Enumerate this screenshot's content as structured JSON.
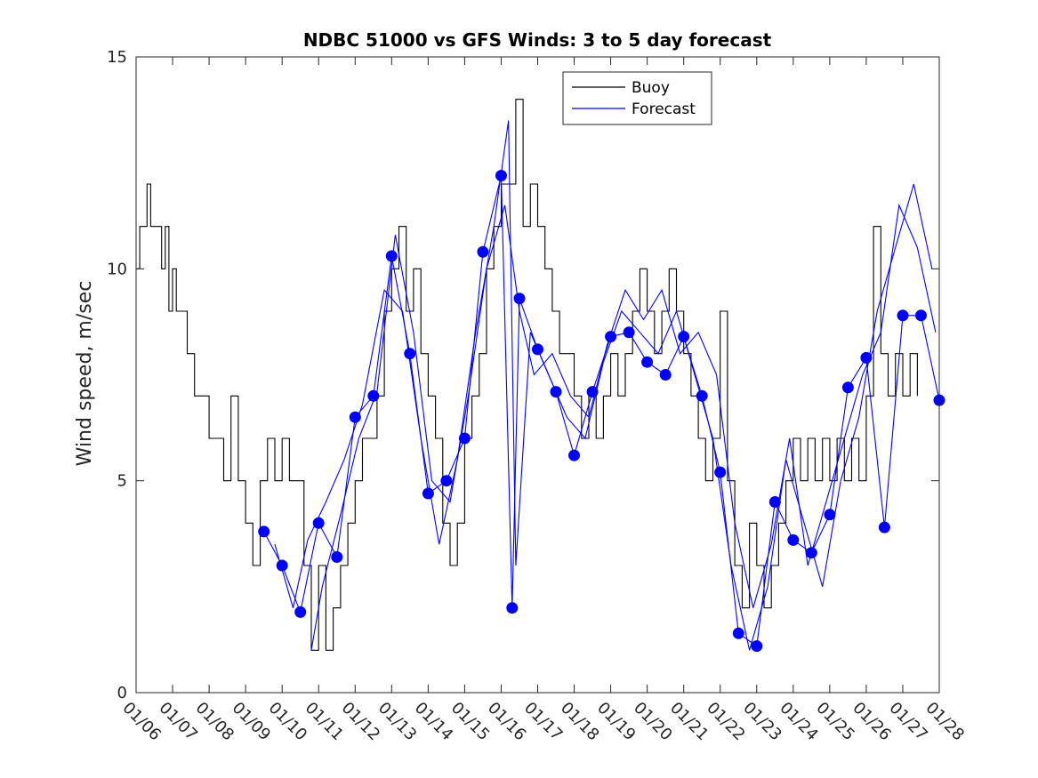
{
  "chart_data": {
    "type": "line",
    "title": "NDBC 51000 vs GFS Winds: 3 to 5 day forecast",
    "xlabel": "",
    "ylabel": "Wind speed, m/sec",
    "x_tick_labels": [
      "01/06",
      "01/07",
      "01/08",
      "01/09",
      "01/10",
      "01/11",
      "01/12",
      "01/13",
      "01/14",
      "01/15",
      "01/16",
      "01/17",
      "01/18",
      "01/19",
      "01/20",
      "01/21",
      "01/22",
      "01/23",
      "01/24",
      "01/25",
      "01/26",
      "01/27",
      "01/28"
    ],
    "y_ticks": [
      0,
      5,
      10,
      15
    ],
    "xlim": [
      "01/06",
      "01/28"
    ],
    "ylim": [
      0,
      15
    ],
    "grid": false,
    "legend_position": "top-center",
    "series": [
      {
        "name": "Buoy",
        "color": "#000000",
        "style": "step",
        "points": [
          [
            0.0,
            10
          ],
          [
            0.1,
            11
          ],
          [
            0.3,
            12
          ],
          [
            0.4,
            11
          ],
          [
            0.6,
            11
          ],
          [
            0.7,
            10
          ],
          [
            0.8,
            11
          ],
          [
            0.9,
            9
          ],
          [
            1.0,
            10
          ],
          [
            1.1,
            9
          ],
          [
            1.2,
            9
          ],
          [
            1.4,
            8
          ],
          [
            1.6,
            7
          ],
          [
            1.8,
            7
          ],
          [
            2.0,
            6
          ],
          [
            2.2,
            6
          ],
          [
            2.4,
            5
          ],
          [
            2.6,
            7
          ],
          [
            2.8,
            5
          ],
          [
            3.0,
            4
          ],
          [
            3.2,
            3
          ],
          [
            3.4,
            5
          ],
          [
            3.6,
            6
          ],
          [
            3.8,
            5
          ],
          [
            4.0,
            6
          ],
          [
            4.2,
            5
          ],
          [
            4.4,
            5
          ],
          [
            4.6,
            3
          ],
          [
            4.8,
            1
          ],
          [
            5.0,
            3
          ],
          [
            5.2,
            1
          ],
          [
            5.4,
            2
          ],
          [
            5.6,
            3
          ],
          [
            5.8,
            4
          ],
          [
            6.0,
            5
          ],
          [
            6.2,
            6
          ],
          [
            6.4,
            6
          ],
          [
            6.6,
            7
          ],
          [
            6.8,
            9
          ],
          [
            7.0,
            10
          ],
          [
            7.2,
            11
          ],
          [
            7.4,
            9
          ],
          [
            7.6,
            10
          ],
          [
            7.8,
            8
          ],
          [
            8.0,
            7
          ],
          [
            8.2,
            6
          ],
          [
            8.4,
            4
          ],
          [
            8.6,
            3
          ],
          [
            8.8,
            4
          ],
          [
            9.0,
            6
          ],
          [
            9.2,
            7
          ],
          [
            9.4,
            8
          ],
          [
            9.6,
            10
          ],
          [
            9.8,
            11
          ],
          [
            10.0,
            12
          ],
          [
            10.2,
            12
          ],
          [
            10.4,
            14
          ],
          [
            10.6,
            11
          ],
          [
            10.8,
            12
          ],
          [
            11.0,
            11
          ],
          [
            11.2,
            10
          ],
          [
            11.4,
            9
          ],
          [
            11.6,
            8
          ],
          [
            11.8,
            8
          ],
          [
            12.0,
            7
          ],
          [
            12.2,
            6
          ],
          [
            12.4,
            7
          ],
          [
            12.6,
            6
          ],
          [
            12.8,
            7
          ],
          [
            13.0,
            8
          ],
          [
            13.2,
            7
          ],
          [
            13.4,
            8
          ],
          [
            13.6,
            9
          ],
          [
            13.8,
            10
          ],
          [
            14.0,
            9
          ],
          [
            14.2,
            8
          ],
          [
            14.4,
            9
          ],
          [
            14.6,
            10
          ],
          [
            14.8,
            9
          ],
          [
            15.0,
            8
          ],
          [
            15.2,
            7
          ],
          [
            15.4,
            6
          ],
          [
            15.6,
            5
          ],
          [
            15.8,
            6
          ],
          [
            16.0,
            9
          ],
          [
            16.2,
            5
          ],
          [
            16.4,
            3
          ],
          [
            16.6,
            2
          ],
          [
            16.8,
            4
          ],
          [
            17.0,
            3
          ],
          [
            17.2,
            2
          ],
          [
            17.4,
            3
          ],
          [
            17.6,
            4
          ],
          [
            17.8,
            5
          ],
          [
            18.0,
            6
          ],
          [
            18.2,
            5
          ],
          [
            18.4,
            6
          ],
          [
            18.6,
            5
          ],
          [
            18.8,
            6
          ],
          [
            19.0,
            5
          ],
          [
            19.2,
            6
          ],
          [
            19.4,
            5
          ],
          [
            19.6,
            6
          ],
          [
            19.8,
            5
          ],
          [
            20.0,
            7
          ],
          [
            20.2,
            11
          ],
          [
            20.4,
            8
          ],
          [
            20.6,
            7
          ],
          [
            20.8,
            8
          ],
          [
            21.0,
            7
          ],
          [
            21.2,
            8
          ],
          [
            21.4,
            7
          ]
        ]
      },
      {
        "name": "Forecast",
        "color": "#0000ff",
        "style": "line",
        "points": [
          [
            3.5,
            3.8
          ],
          [
            4.0,
            3.0
          ],
          [
            4.5,
            1.9
          ],
          [
            5.0,
            4.0
          ],
          [
            5.5,
            3.2
          ],
          [
            6.0,
            6.5
          ],
          [
            6.5,
            7.0
          ],
          [
            7.0,
            10.3
          ],
          [
            7.5,
            8.0
          ],
          [
            8.0,
            4.7
          ],
          [
            8.5,
            5.0
          ],
          [
            9.0,
            6.0
          ],
          [
            9.5,
            10.4
          ],
          [
            10.0,
            12.2
          ],
          [
            10.3,
            2.0
          ],
          [
            10.5,
            9.3
          ],
          [
            11.0,
            8.1
          ],
          [
            11.5,
            7.1
          ],
          [
            12.0,
            5.6
          ],
          [
            12.5,
            7.1
          ],
          [
            13.0,
            8.4
          ],
          [
            13.5,
            8.5
          ],
          [
            14.0,
            7.8
          ],
          [
            14.5,
            7.5
          ],
          [
            15.0,
            8.4
          ],
          [
            15.5,
            7.0
          ],
          [
            16.0,
            5.2
          ],
          [
            16.5,
            1.4
          ],
          [
            17.0,
            1.1
          ],
          [
            17.5,
            4.5
          ],
          [
            18.0,
            3.6
          ],
          [
            18.5,
            3.3
          ],
          [
            19.0,
            4.2
          ],
          [
            19.5,
            7.2
          ],
          [
            20.0,
            7.9
          ],
          [
            20.5,
            3.9
          ],
          [
            21.0,
            8.9
          ],
          [
            21.5,
            8.9
          ],
          [
            22.0,
            6.9
          ]
        ]
      },
      {
        "name": "",
        "color": "#0000ff",
        "style": "line",
        "points": [
          [
            3.8,
            3.5
          ],
          [
            4.3,
            2.0
          ],
          [
            4.7,
            3.6
          ],
          [
            5.2,
            4.5
          ],
          [
            5.7,
            5.5
          ],
          [
            6.2,
            6.8
          ],
          [
            6.8,
            9.5
          ],
          [
            7.3,
            9.0
          ],
          [
            7.8,
            6.0
          ],
          [
            8.3,
            3.5
          ],
          [
            8.8,
            5.5
          ],
          [
            9.3,
            8.5
          ],
          [
            9.8,
            11.0
          ],
          [
            10.2,
            13.5
          ],
          [
            10.4,
            3.0
          ],
          [
            10.8,
            8.5
          ],
          [
            11.3,
            7.5
          ],
          [
            11.8,
            6.5
          ],
          [
            12.3,
            6.0
          ],
          [
            12.8,
            7.8
          ],
          [
            13.3,
            9.0
          ],
          [
            13.8,
            8.5
          ],
          [
            14.3,
            8.0
          ],
          [
            14.8,
            9.0
          ],
          [
            15.3,
            7.5
          ],
          [
            15.8,
            6.0
          ],
          [
            16.3,
            3.0
          ],
          [
            16.8,
            1.0
          ],
          [
            17.3,
            2.5
          ],
          [
            17.8,
            5.5
          ],
          [
            18.3,
            4.0
          ],
          [
            18.8,
            2.5
          ],
          [
            19.3,
            5.0
          ],
          [
            19.8,
            6.5
          ],
          [
            20.3,
            9.0
          ],
          [
            20.8,
            10.5
          ],
          [
            21.3,
            12.0
          ],
          [
            21.8,
            10.0
          ]
        ]
      },
      {
        "name": "",
        "color": "#0000ff",
        "style": "line",
        "points": [
          [
            4.8,
            1.0
          ],
          [
            5.1,
            2.5
          ],
          [
            5.6,
            4.2
          ],
          [
            6.1,
            6.0
          ],
          [
            6.6,
            7.1
          ],
          [
            7.1,
            10.8
          ],
          [
            7.6,
            8.5
          ],
          [
            8.1,
            5.0
          ],
          [
            8.6,
            4.5
          ],
          [
            9.1,
            7.0
          ],
          [
            9.6,
            10.0
          ],
          [
            10.1,
            11.5
          ],
          [
            10.5,
            9.0
          ],
          [
            10.9,
            7.5
          ],
          [
            11.4,
            8.0
          ],
          [
            11.9,
            7.0
          ],
          [
            12.4,
            6.5
          ],
          [
            12.9,
            8.2
          ],
          [
            13.4,
            9.5
          ],
          [
            13.9,
            8.8
          ],
          [
            14.4,
            9.5
          ],
          [
            14.9,
            8.0
          ],
          [
            15.4,
            8.5
          ],
          [
            15.9,
            7.5
          ],
          [
            16.4,
            4.0
          ],
          [
            16.9,
            2.0
          ],
          [
            17.4,
            3.5
          ],
          [
            17.9,
            6.0
          ],
          [
            18.4,
            3.0
          ],
          [
            18.9,
            4.5
          ],
          [
            19.4,
            6.0
          ],
          [
            19.9,
            7.5
          ],
          [
            20.4,
            8.5
          ],
          [
            20.9,
            11.5
          ],
          [
            21.4,
            10.5
          ],
          [
            21.9,
            8.5
          ]
        ]
      }
    ]
  }
}
